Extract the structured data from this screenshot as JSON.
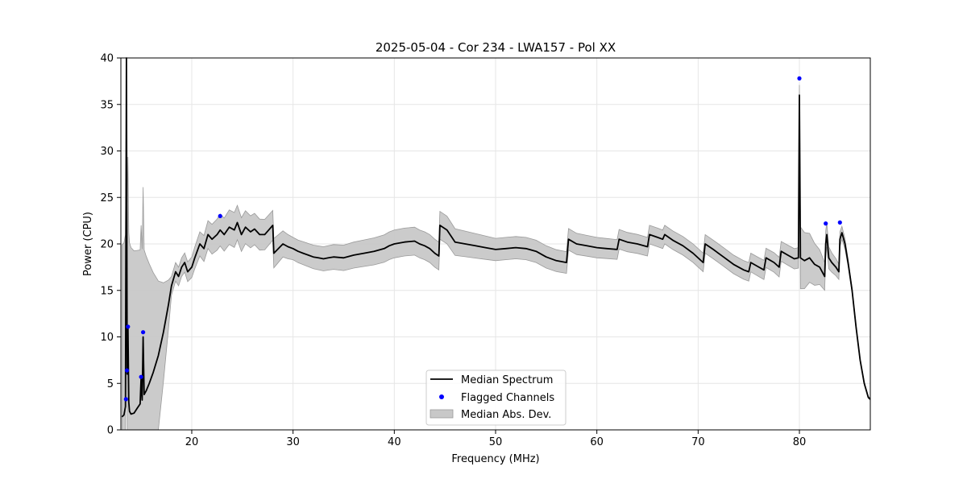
{
  "chart_data": {
    "type": "line",
    "title": "2025-05-04 - Cor 234 - LWA157 - Pol XX",
    "xlabel": "Frequency (MHz)",
    "ylabel": "Power (CPU)",
    "xlim": [
      13.0,
      87.0
    ],
    "ylim": [
      0,
      40
    ],
    "xticks": [
      20,
      30,
      40,
      50,
      60,
      70,
      80
    ],
    "yticks": [
      0,
      5,
      10,
      15,
      20,
      25,
      30,
      35,
      40
    ],
    "grid": true,
    "legend_position": "lower-center",
    "legend": [
      "Median Spectrum",
      "Flagged Channels",
      "Median Abs. Dev."
    ],
    "colors": {
      "median": "#000000",
      "flagged": "#0000ff",
      "mad_fill": "#c8c8c8",
      "mad_edge": "#9a9a9a",
      "grid": "#e6e6e6"
    },
    "series": [
      {
        "name": "Median Spectrum",
        "points": [
          [
            13.1,
            1.4
          ],
          [
            13.3,
            1.6
          ],
          [
            13.45,
            2.5
          ],
          [
            13.55,
            40.0
          ],
          [
            13.62,
            6.0
          ],
          [
            13.7,
            11.0
          ],
          [
            13.78,
            3.0
          ],
          [
            13.85,
            2.0
          ],
          [
            14.0,
            1.7
          ],
          [
            14.3,
            1.8
          ],
          [
            14.6,
            2.3
          ],
          [
            14.9,
            2.8
          ],
          [
            15.0,
            5.6
          ],
          [
            15.1,
            3.2
          ],
          [
            15.2,
            10.0
          ],
          [
            15.3,
            3.8
          ],
          [
            15.5,
            4.2
          ],
          [
            15.8,
            5.0
          ],
          [
            16.2,
            6.2
          ],
          [
            16.7,
            8.0
          ],
          [
            17.2,
            10.5
          ],
          [
            17.7,
            13.5
          ],
          [
            18.0,
            15.5
          ],
          [
            18.4,
            17.0
          ],
          [
            18.7,
            16.5
          ],
          [
            19.0,
            17.5
          ],
          [
            19.3,
            18.0
          ],
          [
            19.6,
            17.0
          ],
          [
            20.0,
            17.5
          ],
          [
            20.3,
            18.5
          ],
          [
            20.8,
            20.0
          ],
          [
            21.2,
            19.5
          ],
          [
            21.6,
            21.0
          ],
          [
            22.0,
            20.5
          ],
          [
            22.5,
            21.0
          ],
          [
            22.8,
            21.5
          ],
          [
            23.2,
            21.0
          ],
          [
            23.7,
            21.8
          ],
          [
            24.2,
            21.5
          ],
          [
            24.5,
            22.3
          ],
          [
            24.9,
            21.0
          ],
          [
            25.3,
            21.8
          ],
          [
            25.8,
            21.3
          ],
          [
            26.2,
            21.6
          ],
          [
            26.7,
            21.0
          ],
          [
            27.2,
            21.0
          ],
          [
            27.6,
            21.5
          ],
          [
            28.0,
            22.0
          ],
          [
            28.1,
            19.0
          ],
          [
            29.0,
            20.0
          ],
          [
            29.5,
            19.7
          ],
          [
            30.0,
            19.5
          ],
          [
            30.5,
            19.2
          ],
          [
            31.0,
            19.0
          ],
          [
            31.5,
            18.8
          ],
          [
            32.0,
            18.6
          ],
          [
            32.5,
            18.5
          ],
          [
            33.0,
            18.4
          ],
          [
            33.5,
            18.5
          ],
          [
            34.0,
            18.6
          ],
          [
            35.0,
            18.5
          ],
          [
            36.0,
            18.8
          ],
          [
            37.0,
            19.0
          ],
          [
            38.0,
            19.2
          ],
          [
            39.0,
            19.5
          ],
          [
            39.5,
            19.8
          ],
          [
            40.0,
            20.0
          ],
          [
            41.0,
            20.2
          ],
          [
            42.0,
            20.3
          ],
          [
            42.5,
            20.0
          ],
          [
            43.0,
            19.8
          ],
          [
            43.5,
            19.5
          ],
          [
            44.0,
            19.0
          ],
          [
            44.4,
            18.7
          ],
          [
            44.5,
            22.0
          ],
          [
            45.2,
            21.5
          ],
          [
            46.0,
            20.2
          ],
          [
            47.0,
            20.0
          ],
          [
            48.0,
            19.8
          ],
          [
            49.0,
            19.6
          ],
          [
            50.0,
            19.4
          ],
          [
            51.0,
            19.5
          ],
          [
            52.0,
            19.6
          ],
          [
            53.0,
            19.5
          ],
          [
            54.0,
            19.2
          ],
          [
            55.0,
            18.6
          ],
          [
            56.0,
            18.2
          ],
          [
            57.0,
            18.0
          ],
          [
            57.2,
            20.5
          ],
          [
            58.0,
            20.0
          ],
          [
            59.0,
            19.8
          ],
          [
            60.0,
            19.6
          ],
          [
            61.0,
            19.5
          ],
          [
            62.0,
            19.4
          ],
          [
            62.2,
            20.5
          ],
          [
            63.0,
            20.2
          ],
          [
            64.0,
            20.0
          ],
          [
            65.0,
            19.7
          ],
          [
            65.2,
            21.0
          ],
          [
            66.0,
            20.7
          ],
          [
            66.5,
            20.5
          ],
          [
            66.7,
            21.0
          ],
          [
            67.5,
            20.4
          ],
          [
            68.5,
            19.8
          ],
          [
            69.5,
            19.0
          ],
          [
            70.5,
            18.0
          ],
          [
            70.7,
            20.0
          ],
          [
            71.5,
            19.4
          ],
          [
            72.5,
            18.6
          ],
          [
            73.5,
            17.8
          ],
          [
            74.5,
            17.2
          ],
          [
            75.0,
            17.0
          ],
          [
            75.2,
            18.0
          ],
          [
            76.0,
            17.5
          ],
          [
            76.5,
            17.2
          ],
          [
            76.7,
            18.5
          ],
          [
            77.5,
            18.0
          ],
          [
            78.0,
            17.5
          ],
          [
            78.2,
            19.2
          ],
          [
            79.0,
            18.7
          ],
          [
            79.5,
            18.4
          ],
          [
            79.9,
            18.5
          ],
          [
            80.0,
            36.0
          ],
          [
            80.1,
            18.5
          ],
          [
            80.5,
            18.2
          ],
          [
            81.0,
            18.5
          ],
          [
            81.5,
            17.8
          ],
          [
            82.0,
            17.5
          ],
          [
            82.5,
            16.5
          ],
          [
            82.6,
            20.0
          ],
          [
            82.7,
            21.0
          ],
          [
            82.9,
            18.5
          ],
          [
            83.2,
            18.0
          ],
          [
            83.6,
            17.5
          ],
          [
            83.9,
            17.0
          ],
          [
            84.0,
            20.5
          ],
          [
            84.2,
            21.2
          ],
          [
            84.5,
            20.0
          ],
          [
            84.8,
            18.0
          ],
          [
            85.2,
            15.0
          ],
          [
            85.6,
            11.0
          ],
          [
            86.0,
            7.5
          ],
          [
            86.4,
            5.0
          ],
          [
            86.8,
            3.5
          ],
          [
            87.0,
            3.3
          ]
        ]
      },
      {
        "name": "Flagged Channels",
        "points": [
          [
            13.5,
            3.3
          ],
          [
            13.6,
            6.4
          ],
          [
            13.7,
            11.1
          ],
          [
            15.0,
            5.7
          ],
          [
            15.2,
            10.5
          ],
          [
            22.8,
            23.0
          ],
          [
            80.0,
            37.8
          ],
          [
            82.6,
            22.2
          ],
          [
            84.0,
            22.3
          ]
        ]
      },
      {
        "name": "Median Abs. Dev.",
        "band": [
          [
            13.6,
            18.5
          ],
          [
            15.2,
            16.1
          ],
          [
            18.0,
            1.0
          ],
          [
            19.0,
            1.0
          ],
          [
            20.0,
            1.1
          ],
          [
            22.0,
            1.6
          ],
          [
            24.0,
            1.9
          ],
          [
            26.0,
            1.7
          ],
          [
            28.0,
            1.6
          ],
          [
            30.0,
            1.2
          ],
          [
            33.0,
            1.3
          ],
          [
            36.0,
            1.4
          ],
          [
            40.0,
            1.5
          ],
          [
            44.0,
            1.5
          ],
          [
            45.0,
            1.5
          ],
          [
            50.0,
            1.2
          ],
          [
            55.0,
            1.2
          ],
          [
            60.0,
            1.1
          ],
          [
            65.0,
            1.0
          ],
          [
            70.0,
            1.0
          ],
          [
            75.0,
            1.0
          ],
          [
            80.0,
            1.1
          ],
          [
            80.0,
            3.4
          ],
          [
            83.0,
            1.1
          ],
          [
            84.0,
            0.8
          ],
          [
            85.0,
            0.3
          ],
          [
            87.0,
            0.1
          ]
        ]
      }
    ]
  }
}
